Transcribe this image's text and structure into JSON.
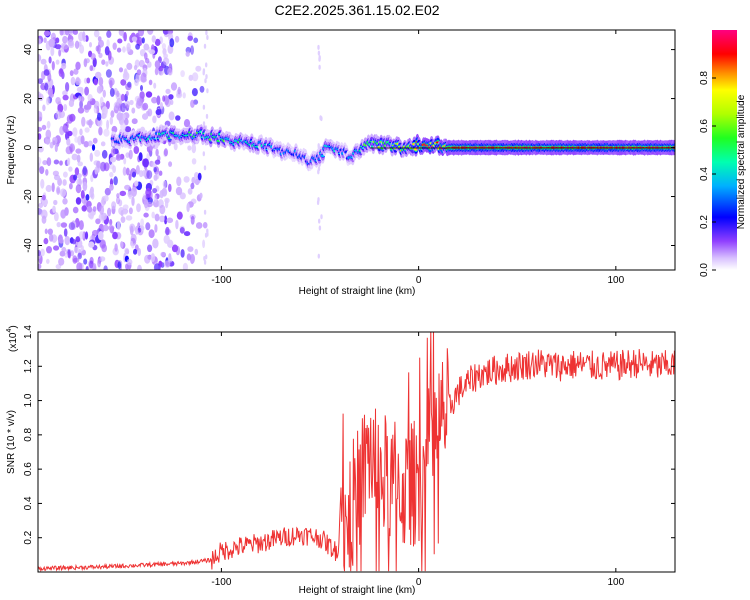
{
  "title": "C2E2.2025.361.15.02.E02",
  "chart_data": [
    {
      "type": "heatmap",
      "xlabel": "Height of straight line (km)",
      "ylabel": "Frequency (Hz)",
      "xlim": [
        -193,
        130
      ],
      "ylim": [
        -50,
        48
      ],
      "xticks": [
        -100,
        0,
        100
      ],
      "xtick_labels": [
        "-100",
        "0",
        "100"
      ],
      "yticks": [
        -40,
        -20,
        0,
        20,
        40
      ],
      "ytick_labels": [
        "-40",
        "-20",
        "0",
        "20",
        "40"
      ],
      "zlabel": "Normalized spectral amplitude",
      "zlim": [
        0,
        1
      ],
      "zticks": [
        0.0,
        0.2,
        0.4,
        0.6,
        0.8
      ],
      "ztick_labels": [
        "0.0",
        "0.2",
        "0.4",
        "0.6",
        "0.8"
      ],
      "colormap": [
        "#ffffff",
        "#c8a8ff",
        "#7010ff",
        "#0000ff",
        "#00c8ff",
        "#00ff80",
        "#60ff00",
        "#ffff00",
        "#ff8000",
        "#ff0000",
        "#ff0080"
      ],
      "ridge": {
        "x": [
          -155,
          -140,
          -125,
          -110,
          -100,
          -90,
          -80,
          -70,
          -62,
          -56,
          -52,
          -47,
          -42,
          -38,
          -34,
          -30,
          -25,
          -20,
          -15,
          -10,
          -5,
          0,
          5,
          10,
          15,
          130
        ],
        "frequency": [
          3,
          4,
          5,
          5,
          4,
          2,
          1,
          -1,
          -3,
          -5,
          -6,
          0,
          -1,
          -2,
          -4,
          -1,
          1,
          1,
          1,
          0,
          0,
          1,
          1,
          1,
          0,
          0
        ],
        "amplitude": [
          0.35,
          0.45,
          0.5,
          0.55,
          0.55,
          0.5,
          0.45,
          0.35,
          0.3,
          0.3,
          0.35,
          0.45,
          0.4,
          0.35,
          0.3,
          0.5,
          0.6,
          0.7,
          0.75,
          0.8,
          0.85,
          0.9,
          0.92,
          0.95,
          0.98,
          0.98
        ]
      }
    },
    {
      "type": "line",
      "series": [
        {
          "name": "SNR",
          "color": "#ee3333"
        }
      ],
      "xlabel": "Height of straight line (km)",
      "ylabel": "SNR (10 * v/v)",
      "y_multiplier": "(x10^4)",
      "y_multiplier_base": "(x10",
      "y_multiplier_exp": "4",
      "y_multiplier_close": ")",
      "xlim": [
        -193,
        130
      ],
      "ylim": [
        0,
        1.4
      ],
      "xticks": [
        -100,
        0,
        100
      ],
      "xtick_labels": [
        "-100",
        "0",
        "100"
      ],
      "yticks": [
        0.2,
        0.4,
        0.6,
        0.8,
        1.0,
        1.2,
        1.4
      ],
      "ytick_labels": [
        "0.2",
        "0.4",
        "0.6",
        "0.8",
        "1.0",
        "1.2",
        "1.4"
      ],
      "x": [
        -193,
        -160,
        -140,
        -120,
        -105,
        -100,
        -90,
        -80,
        -70,
        -60,
        -50,
        -42,
        -38,
        -35,
        -30,
        -25,
        -22,
        -20,
        -15,
        -10,
        -5,
        0,
        5,
        10,
        15,
        20,
        30,
        40,
        50,
        60,
        70,
        80,
        90,
        100,
        110,
        120,
        130
      ],
      "y": [
        0.02,
        0.03,
        0.04,
        0.05,
        0.07,
        0.12,
        0.15,
        0.17,
        0.2,
        0.22,
        0.2,
        0.12,
        0.25,
        0.35,
        0.5,
        0.7,
        0.65,
        0.55,
        0.55,
        0.5,
        0.48,
        0.55,
        0.7,
        0.85,
        0.95,
        1.05,
        1.15,
        1.18,
        1.2,
        1.22,
        1.2,
        1.21,
        1.2,
        1.2,
        1.22,
        1.2,
        1.21
      ]
    }
  ]
}
